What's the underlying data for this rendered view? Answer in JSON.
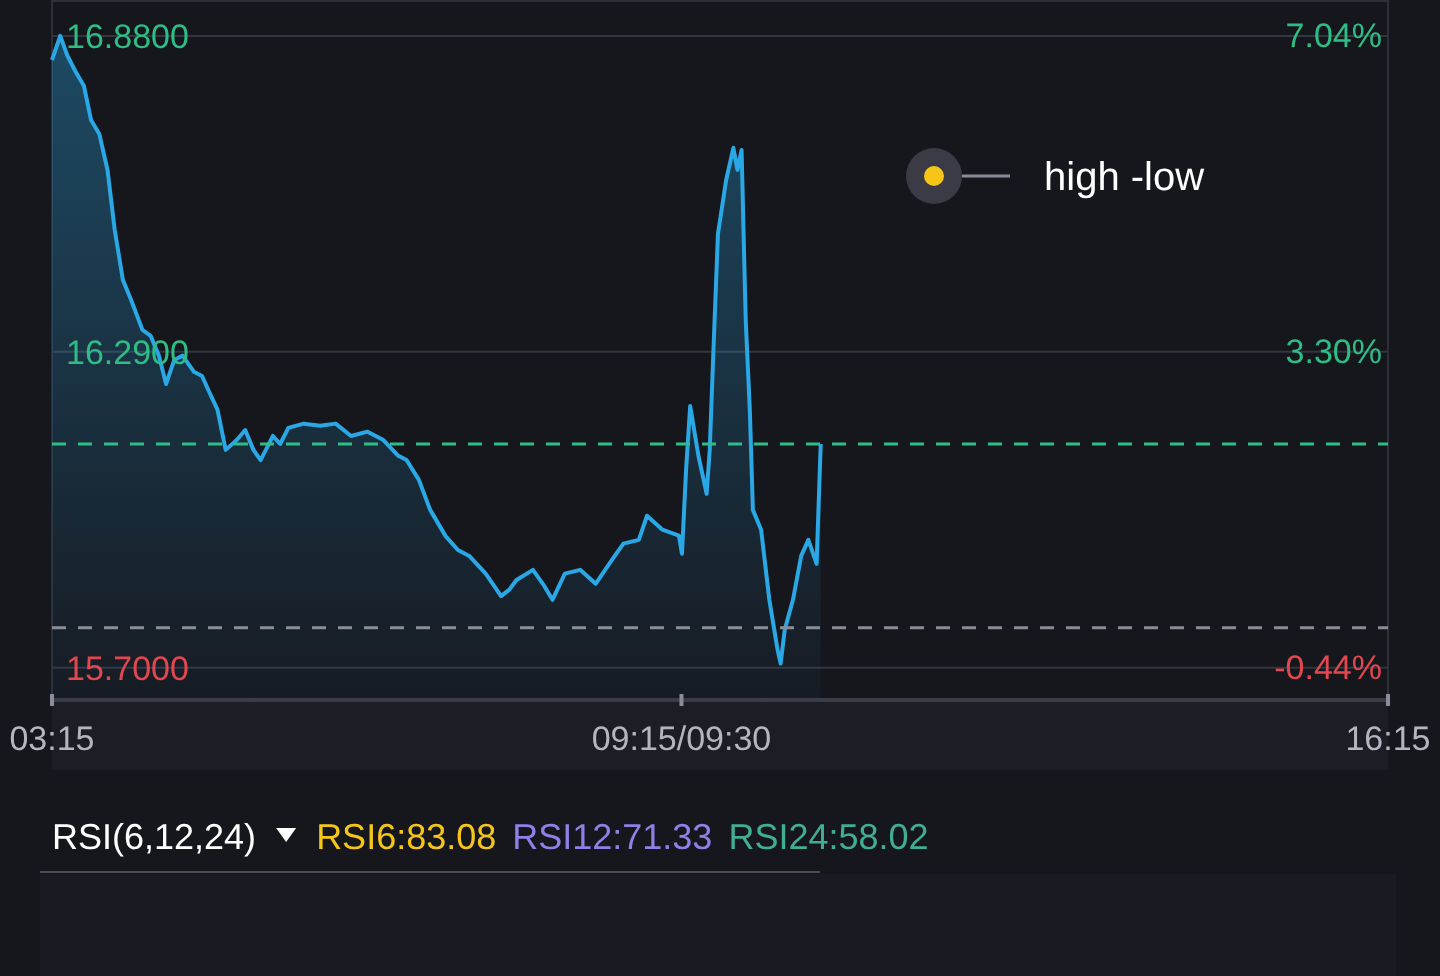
{
  "chart_data": [
    {
      "type": "area",
      "x": [
        3.25,
        3.33,
        3.4,
        3.48,
        3.56,
        3.63,
        3.71,
        3.79,
        3.86,
        3.94,
        4.02,
        4.13,
        4.21,
        4.29,
        4.36,
        4.44,
        4.52,
        4.63,
        4.71,
        4.78,
        4.86,
        4.94,
        5.05,
        5.13,
        5.21,
        5.28,
        5.4,
        5.47,
        5.55,
        5.7,
        5.86,
        6.01,
        6.16,
        6.32,
        6.47,
        6.62,
        6.7,
        6.82,
        6.93,
        7.08,
        7.2,
        7.31,
        7.47,
        7.62,
        7.7,
        7.77,
        7.93,
        8.04,
        8.12,
        8.24,
        8.39,
        8.54,
        8.7,
        8.81,
        8.96,
        9.04,
        9.19,
        9.35,
        9.38,
        9.42,
        9.46,
        9.54,
        9.62,
        9.65,
        9.69,
        9.73,
        9.81,
        9.88,
        9.92,
        9.96,
        10.0,
        10.04,
        10.07,
        10.15,
        10.23,
        10.31,
        10.34,
        10.38,
        10.46,
        10.54,
        10.61,
        10.69,
        10.73
      ],
      "series": [
        {
          "color": "#2aa8e6",
          "values": [
            16.835,
            16.88,
            16.843,
            16.813,
            16.787,
            16.723,
            16.697,
            16.63,
            16.518,
            16.424,
            16.387,
            16.331,
            16.32,
            16.283,
            16.23,
            16.275,
            16.283,
            16.253,
            16.245,
            16.215,
            16.182,
            16.107,
            16.126,
            16.144,
            16.107,
            16.088,
            16.133,
            16.118,
            16.148,
            16.156,
            16.152,
            16.156,
            16.133,
            16.141,
            16.126,
            16.096,
            16.088,
            16.051,
            15.995,
            15.946,
            15.92,
            15.909,
            15.876,
            15.834,
            15.846,
            15.864,
            15.883,
            15.853,
            15.827,
            15.876,
            15.883,
            15.857,
            15.902,
            15.932,
            15.939,
            15.984,
            15.958,
            15.947,
            15.913,
            16.07,
            16.189,
            16.096,
            16.025,
            16.107,
            16.312,
            16.51,
            16.611,
            16.671,
            16.63,
            16.667,
            16.35,
            16.182,
            15.995,
            15.958,
            15.827,
            15.734,
            15.708,
            15.771,
            15.827,
            15.909,
            15.939,
            15.894,
            16.118
          ]
        }
      ],
      "xlim": [
        3.25,
        16.25
      ],
      "xticks": [
        {
          "value": 3.25,
          "label": "03:15"
        },
        {
          "value": 9.375,
          "label": "09:15/09:30"
        },
        {
          "value": 16.25,
          "label": "16:15"
        }
      ],
      "ylim": [
        15.64,
        16.947
      ],
      "yticks": [
        {
          "value": 15.7,
          "label": "15.7000"
        },
        {
          "value": 16.29,
          "label": "16.2900"
        },
        {
          "value": 16.88,
          "label": "16.8800"
        }
      ],
      "y2lim": [
        -0.83,
        7.46
      ],
      "y2ticks": [
        {
          "value": -0.44,
          "label": "-0.44%"
        },
        {
          "value": 3.3,
          "label": "3.30%"
        },
        {
          "value": 7.04,
          "label": "7.04%"
        }
      ],
      "ref_lines": [
        {
          "axis": "y",
          "value": 16.118,
          "color": "#2ebd85",
          "line_style": "dashed"
        },
        {
          "axis": "y",
          "value": 15.775,
          "color": "#8a8d99",
          "line_style": "dashed"
        }
      ],
      "grid": "y",
      "annotations": [
        "high -low"
      ]
    },
    {
      "type": "other",
      "title": "RSI(6,12,24)",
      "annotations": [
        "RSI6:83.08",
        "RSI12:71.33",
        "RSI24:58.02"
      ]
    }
  ]
}
